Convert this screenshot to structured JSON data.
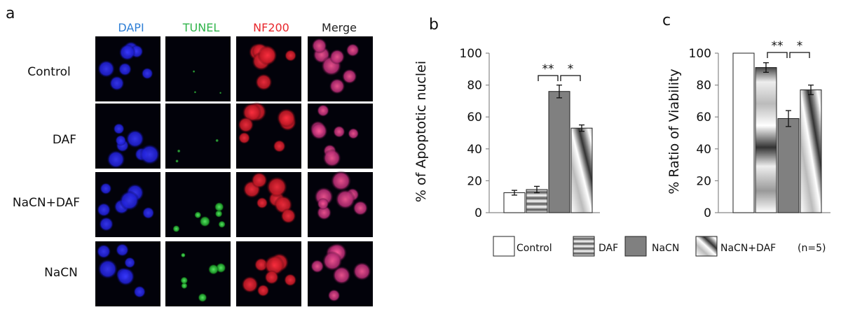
{
  "panel_letters": {
    "a": "a",
    "b": "b",
    "c": "c"
  },
  "microscopy": {
    "columns": [
      "DAPI",
      "TUNEL",
      "NF200",
      "Merge"
    ],
    "column_colors": [
      "#2f7fd6",
      "#2fb44a",
      "#e8262b",
      "#222222"
    ],
    "rows": [
      "Control",
      "DAF",
      "NaCN+DAF",
      "NaCN"
    ]
  },
  "chart_data": [
    {
      "type": "bar",
      "panel": "b",
      "categories": [
        "Control",
        "DAF",
        "NaCN",
        "NaCN+DAF"
      ],
      "values": [
        12.5,
        14.5,
        76,
        53
      ],
      "errors": [
        1.5,
        2,
        4,
        2
      ],
      "ylabel": "% of Apoptotic nuclei",
      "ylim": [
        0,
        100
      ],
      "yticks": [
        0,
        20,
        40,
        60,
        80,
        100
      ],
      "significance": [
        {
          "from": 1,
          "to": 2,
          "label": "**"
        },
        {
          "from": 2,
          "to": 3,
          "label": "*"
        }
      ]
    },
    {
      "type": "bar",
      "panel": "c",
      "categories": [
        "Control",
        "DAF",
        "NaCN",
        "NaCN+DAF"
      ],
      "values": [
        100,
        91,
        59,
        77
      ],
      "errors": [
        0,
        3,
        5,
        3
      ],
      "ylabel": "% Ratio of Viability",
      "ylim": [
        0,
        100
      ],
      "yticks": [
        0,
        20,
        40,
        60,
        80,
        100
      ],
      "significance": [
        {
          "from": 1,
          "to": 2,
          "label": "**"
        },
        {
          "from": 2,
          "to": 3,
          "label": "*"
        }
      ]
    }
  ],
  "legend": {
    "placement": "bottom",
    "items": [
      {
        "label": "Control",
        "pattern": "white"
      },
      {
        "label": "DAF",
        "pattern": "hstripe"
      },
      {
        "label": "NaCN",
        "pattern": "gray"
      },
      {
        "label": "NaCN+DAF",
        "pattern": "diag"
      }
    ],
    "note": "(n=5)"
  },
  "colors": {
    "bar_gray": "#808080",
    "axis": "#888888"
  }
}
